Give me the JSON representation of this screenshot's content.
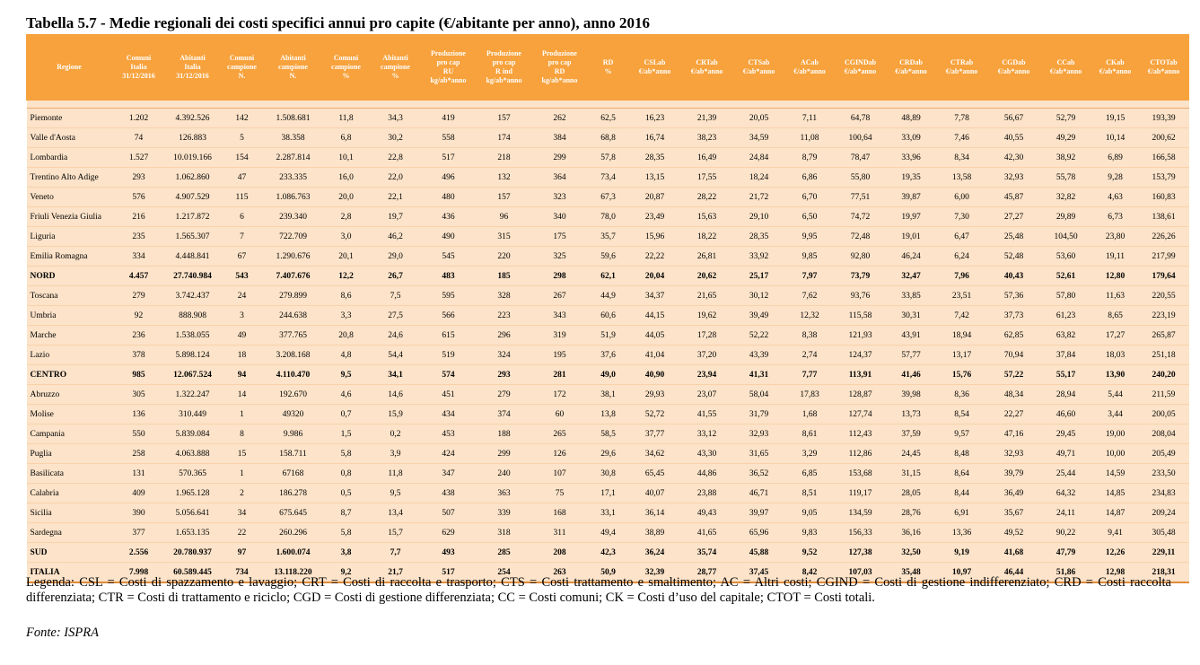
{
  "title": "Tabella 5.7 - Medie regionali dei costi specifici annui pro capite (€/abitante per anno), anno 2016",
  "headers": [
    "Regione",
    "Comuni\nItalia\n31/12/2016",
    "Abitanti\nItalia\n31/12/2016",
    "Comuni\ncampione\nN.",
    "Abitanti\ncampione\nN.",
    "Comuni\ncampione\n%",
    "Abitanti\ncampione\n%",
    "Produzione\npro cap\nRU\nkg/ab*anno",
    "Produzione\npro cap\nR ind\nkg/ab*anno",
    "Produzione\npro cap\nRD\nkg/ab*anno",
    "RD\n%",
    "CSLab\n€/ab*anno",
    "CRTab\n€/ab*anno",
    "CTSab\n€/ab*anno",
    "ACab\n€/ab*anno",
    "CGINDab\n€/ab*anno",
    "CRDab\n€/ab*anno",
    "CTRab\n€/ab*anno",
    "CGDab\n€/ab*anno",
    "CCab\n€/ab*anno",
    "CKab\n€/ab*anno",
    "CTOTab\n€/ab*anno"
  ],
  "rows": [
    {
      "bold": false,
      "cells": [
        "Piemonte",
        "1.202",
        "4.392.526",
        "142",
        "1.508.681",
        "11,8",
        "34,3",
        "419",
        "157",
        "262",
        "62,5",
        "16,23",
        "21,39",
        "20,05",
        "7,11",
        "64,78",
        "48,89",
        "7,78",
        "56,67",
        "52,79",
        "19,15",
        "193,39"
      ]
    },
    {
      "bold": false,
      "cells": [
        "Valle d'Aosta",
        "74",
        "126.883",
        "5",
        "38.358",
        "6,8",
        "30,2",
        "558",
        "174",
        "384",
        "68,8",
        "16,74",
        "38,23",
        "34,59",
        "11,08",
        "100,64",
        "33,09",
        "7,46",
        "40,55",
        "49,29",
        "10,14",
        "200,62"
      ]
    },
    {
      "bold": false,
      "cells": [
        "Lombardia",
        "1.527",
        "10.019.166",
        "154",
        "2.287.814",
        "10,1",
        "22,8",
        "517",
        "218",
        "299",
        "57,8",
        "28,35",
        "16,49",
        "24,84",
        "8,79",
        "78,47",
        "33,96",
        "8,34",
        "42,30",
        "38,92",
        "6,89",
        "166,58"
      ]
    },
    {
      "bold": false,
      "cells": [
        "Trentino Alto Adige",
        "293",
        "1.062.860",
        "47",
        "233.335",
        "16,0",
        "22,0",
        "496",
        "132",
        "364",
        "73,4",
        "13,15",
        "17,55",
        "18,24",
        "6,86",
        "55,80",
        "19,35",
        "13,58",
        "32,93",
        "55,78",
        "9,28",
        "153,79"
      ]
    },
    {
      "bold": false,
      "cells": [
        "Veneto",
        "576",
        "4.907.529",
        "115",
        "1.086.763",
        "20,0",
        "22,1",
        "480",
        "157",
        "323",
        "67,3",
        "20,87",
        "28,22",
        "21,72",
        "6,70",
        "77,51",
        "39,87",
        "6,00",
        "45,87",
        "32,82",
        "4,63",
        "160,83"
      ]
    },
    {
      "bold": false,
      "cells": [
        "Friuli Venezia Giulia",
        "216",
        "1.217.872",
        "6",
        "239.340",
        "2,8",
        "19,7",
        "436",
        "96",
        "340",
        "78,0",
        "23,49",
        "15,63",
        "29,10",
        "6,50",
        "74,72",
        "19,97",
        "7,30",
        "27,27",
        "29,89",
        "6,73",
        "138,61"
      ]
    },
    {
      "bold": false,
      "cells": [
        "Liguria",
        "235",
        "1.565.307",
        "7",
        "722.709",
        "3,0",
        "46,2",
        "490",
        "315",
        "175",
        "35,7",
        "15,96",
        "18,22",
        "28,35",
        "9,95",
        "72,48",
        "19,01",
        "6,47",
        "25,48",
        "104,50",
        "23,80",
        "226,26"
      ]
    },
    {
      "bold": false,
      "cells": [
        "Emilia Romagna",
        "334",
        "4.448.841",
        "67",
        "1.290.676",
        "20,1",
        "29,0",
        "545",
        "220",
        "325",
        "59,6",
        "22,22",
        "26,81",
        "33,92",
        "9,85",
        "92,80",
        "46,24",
        "6,24",
        "52,48",
        "53,60",
        "19,11",
        "217,99"
      ]
    },
    {
      "bold": true,
      "cells": [
        "NORD",
        "4.457",
        "27.740.984",
        "543",
        "7.407.676",
        "12,2",
        "26,7",
        "483",
        "185",
        "298",
        "62,1",
        "20,04",
        "20,62",
        "25,17",
        "7,97",
        "73,79",
        "32,47",
        "7,96",
        "40,43",
        "52,61",
        "12,80",
        "179,64"
      ]
    },
    {
      "bold": false,
      "cells": [
        "Toscana",
        "279",
        "3.742.437",
        "24",
        "279.899",
        "8,6",
        "7,5",
        "595",
        "328",
        "267",
        "44,9",
        "34,37",
        "21,65",
        "30,12",
        "7,62",
        "93,76",
        "33,85",
        "23,51",
        "57,36",
        "57,80",
        "11,63",
        "220,55"
      ]
    },
    {
      "bold": false,
      "cells": [
        "Umbria",
        "92",
        "888.908",
        "3",
        "244.638",
        "3,3",
        "27,5",
        "566",
        "223",
        "343",
        "60,6",
        "44,15",
        "19,62",
        "39,49",
        "12,32",
        "115,58",
        "30,31",
        "7,42",
        "37,73",
        "61,23",
        "8,65",
        "223,19"
      ]
    },
    {
      "bold": false,
      "cells": [
        "Marche",
        "236",
        "1.538.055",
        "49",
        "377.765",
        "20,8",
        "24,6",
        "615",
        "296",
        "319",
        "51,9",
        "44,05",
        "17,28",
        "52,22",
        "8,38",
        "121,93",
        "43,91",
        "18,94",
        "62,85",
        "63,82",
        "17,27",
        "265,87"
      ]
    },
    {
      "bold": false,
      "cells": [
        "Lazio",
        "378",
        "5.898.124",
        "18",
        "3.208.168",
        "4,8",
        "54,4",
        "519",
        "324",
        "195",
        "37,6",
        "41,04",
        "37,20",
        "43,39",
        "2,74",
        "124,37",
        "57,77",
        "13,17",
        "70,94",
        "37,84",
        "18,03",
        "251,18"
      ]
    },
    {
      "bold": true,
      "cells": [
        "CENTRO",
        "985",
        "12.067.524",
        "94",
        "4.110.470",
        "9,5",
        "34,1",
        "574",
        "293",
        "281",
        "49,0",
        "40,90",
        "23,94",
        "41,31",
        "7,77",
        "113,91",
        "41,46",
        "15,76",
        "57,22",
        "55,17",
        "13,90",
        "240,20"
      ]
    },
    {
      "bold": false,
      "cells": [
        "Abruzzo",
        "305",
        "1.322.247",
        "14",
        "192.670",
        "4,6",
        "14,6",
        "451",
        "279",
        "172",
        "38,1",
        "29,93",
        "23,07",
        "58,04",
        "17,83",
        "128,87",
        "39,98",
        "8,36",
        "48,34",
        "28,94",
        "5,44",
        "211,59"
      ]
    },
    {
      "bold": false,
      "cells": [
        "Molise",
        "136",
        "310.449",
        "1",
        "49320",
        "0,7",
        "15,9",
        "434",
        "374",
        "60",
        "13,8",
        "52,72",
        "41,55",
        "31,79",
        "1,68",
        "127,74",
        "13,73",
        "8,54",
        "22,27",
        "46,60",
        "3,44",
        "200,05"
      ]
    },
    {
      "bold": false,
      "cells": [
        "Campania",
        "550",
        "5.839.084",
        "8",
        "9.986",
        "1,5",
        "0,2",
        "453",
        "188",
        "265",
        "58,5",
        "37,77",
        "33,12",
        "32,93",
        "8,61",
        "112,43",
        "37,59",
        "9,57",
        "47,16",
        "29,45",
        "19,00",
        "208,04"
      ]
    },
    {
      "bold": false,
      "cells": [
        "Puglia",
        "258",
        "4.063.888",
        "15",
        "158.711",
        "5,8",
        "3,9",
        "424",
        "299",
        "126",
        "29,6",
        "34,62",
        "43,30",
        "31,65",
        "3,29",
        "112,86",
        "24,45",
        "8,48",
        "32,93",
        "49,71",
        "10,00",
        "205,49"
      ]
    },
    {
      "bold": false,
      "cells": [
        "Basilicata",
        "131",
        "570.365",
        "1",
        "67168",
        "0,8",
        "11,8",
        "347",
        "240",
        "107",
        "30,8",
        "65,45",
        "44,86",
        "36,52",
        "6,85",
        "153,68",
        "31,15",
        "8,64",
        "39,79",
        "25,44",
        "14,59",
        "233,50"
      ]
    },
    {
      "bold": false,
      "cells": [
        "Calabria",
        "409",
        "1.965.128",
        "2",
        "186.278",
        "0,5",
        "9,5",
        "438",
        "363",
        "75",
        "17,1",
        "40,07",
        "23,88",
        "46,71",
        "8,51",
        "119,17",
        "28,05",
        "8,44",
        "36,49",
        "64,32",
        "14,85",
        "234,83"
      ]
    },
    {
      "bold": false,
      "cells": [
        "Sicilia",
        "390",
        "5.056.641",
        "34",
        "675.645",
        "8,7",
        "13,4",
        "507",
        "339",
        "168",
        "33,1",
        "36,14",
        "49,43",
        "39,97",
        "9,05",
        "134,59",
        "28,76",
        "6,91",
        "35,67",
        "24,11",
        "14,87",
        "209,24"
      ]
    },
    {
      "bold": false,
      "cells": [
        "Sardegna",
        "377",
        "1.653.135",
        "22",
        "260.296",
        "5,8",
        "15,7",
        "629",
        "318",
        "311",
        "49,4",
        "38,89",
        "41,65",
        "65,96",
        "9,83",
        "156,33",
        "36,16",
        "13,36",
        "49,52",
        "90,22",
        "9,41",
        "305,48"
      ]
    },
    {
      "bold": true,
      "cells": [
        "SUD",
        "2.556",
        "20.780.937",
        "97",
        "1.600.074",
        "3,8",
        "7,7",
        "493",
        "285",
        "208",
        "42,3",
        "36,24",
        "35,74",
        "45,88",
        "9,52",
        "127,38",
        "32,50",
        "9,19",
        "41,68",
        "47,79",
        "12,26",
        "229,11"
      ]
    },
    {
      "bold": true,
      "cells": [
        "ITALIA",
        "7.998",
        "60.589.445",
        "734",
        "13.118.220",
        "9,2",
        "21,7",
        "517",
        "254",
        "263",
        "50,9",
        "32,39",
        "28,77",
        "37,45",
        "8,42",
        "107,03",
        "35,48",
        "10,97",
        "46,44",
        "51,86",
        "12,98",
        "218,31"
      ]
    }
  ],
  "legend": "Legenda: CSL = Costi di spazzamento e lavaggio; CRT = Costi di raccolta e trasporto; CTS = Costi trattamento e smaltimento; AC = Altri costi; CGIND = Costi di gestione indifferenziato; CRD = Costi raccolta differenziata;  CTR = Costi di trattamento e riciclo; CGD = Costi di gestione differenziata; CC = Costi comuni; CK = Costi d’uso del capitale; CTOT = Costi totali.",
  "source": "Fonte: ISPRA",
  "colors": {
    "header_bg": "#f7a23c",
    "row_bg": "#fce3c9",
    "header_text": "#ffffff"
  }
}
